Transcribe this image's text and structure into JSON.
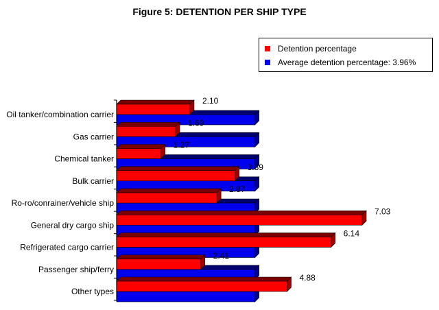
{
  "title": "Figure 5: DETENTION PER SHIP TYPE",
  "colors": {
    "detention": "#ff0000",
    "average": "#0000ee",
    "axis": "#000000"
  },
  "chart_data": {
    "type": "bar",
    "orientation": "horizontal",
    "title": "Figure 5: DETENTION PER SHIP TYPE",
    "categories": [
      "Oil tanker/combination carrier",
      "Gas carrier",
      "Chemical tanker",
      "Bulk carrier",
      "Ro-ro/conrainer/vehicle ship",
      "General dry cargo ship",
      "Refrigerated cargo carrier",
      "Passenger ship/ferry",
      "Other types"
    ],
    "series": [
      {
        "name": "Detention percentage",
        "values": [
          2.1,
          1.69,
          1.27,
          3.39,
          2.87,
          7.03,
          6.14,
          2.41,
          4.88
        ]
      },
      {
        "name": "Average detention percentage: 3.96%",
        "values": [
          3.96,
          3.96,
          3.96,
          3.96,
          3.96,
          3.96,
          3.96,
          3.96,
          3.96
        ]
      }
    ],
    "data_labels": [
      "2.10",
      "1.69",
      "1.27",
      "3.39",
      "2.87",
      "7.03",
      "6.14",
      "2.41",
      "4.88"
    ],
    "xlim": [
      0,
      8
    ],
    "grid": false,
    "legend_position": "top-right"
  }
}
